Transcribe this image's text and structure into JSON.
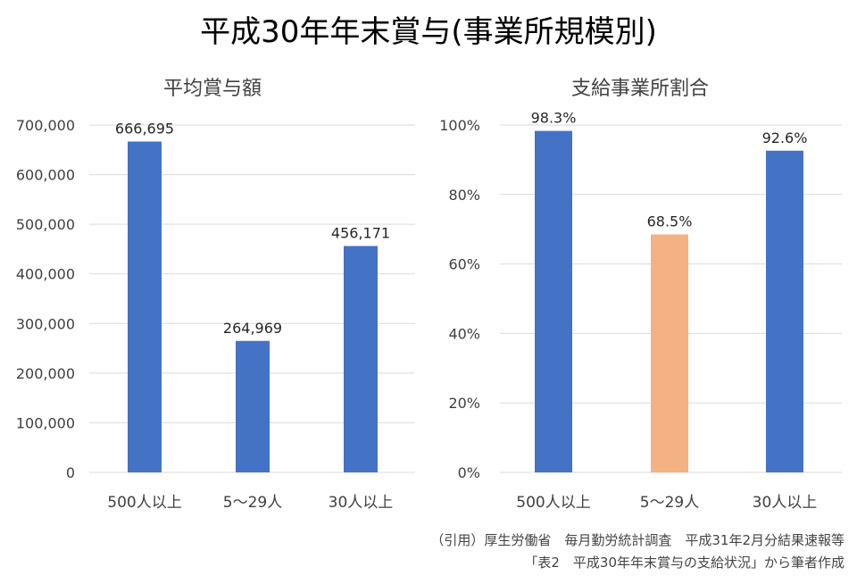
{
  "title": "平成30年年末賞与(事業所規模別)",
  "source": {
    "line1": "（引用）厚生労働省　毎月勤労統計調査　平成31年2月分結果速報等",
    "line2": "「表2　平成30年年末賞与の支給状況」から筆者作成"
  },
  "chart_data": [
    {
      "type": "bar",
      "title": "平均賞与額",
      "categories": [
        "500人以上",
        "5〜29人",
        "30人以上"
      ],
      "values": [
        666695,
        264969,
        456171
      ],
      "value_labels": [
        "666,695",
        "264,969",
        "456,171"
      ],
      "ylim": [
        0,
        700000
      ],
      "yticks": [
        "0",
        "100,000",
        "200,000",
        "300,000",
        "400,000",
        "500,000",
        "600,000",
        "700,000"
      ],
      "grid": true,
      "colors": [
        "#4472C4",
        "#4472C4",
        "#4472C4"
      ]
    },
    {
      "type": "bar",
      "title": "支給事業所割合",
      "categories": [
        "500人以上",
        "5〜29人",
        "30人以上"
      ],
      "values": [
        98.3,
        68.5,
        92.6
      ],
      "value_labels": [
        "98.3%",
        "68.5%",
        "92.6%"
      ],
      "ylim": [
        0,
        100
      ],
      "yticks": [
        "0%",
        "20%",
        "40%",
        "60%",
        "80%",
        "100%"
      ],
      "grid": true,
      "colors": [
        "#4472C4",
        "#F4B183",
        "#4472C4"
      ]
    }
  ]
}
